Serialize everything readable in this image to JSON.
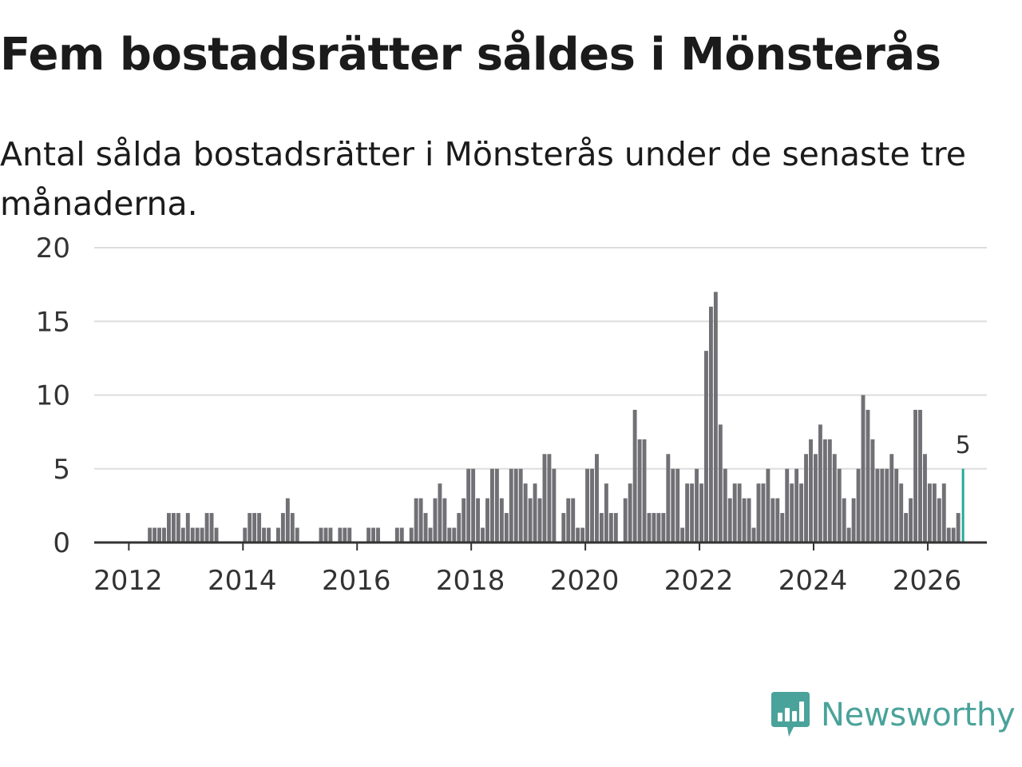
{
  "title": "Fem bostadsrätter såldes i Mönsterås",
  "subtitle": "Antal sålda bostadsrätter i Mönsterås under de senaste tre månaderna.",
  "brand": {
    "name": "Newsworthy",
    "color": "#4aa39a"
  },
  "colors": {
    "bar": "#717075",
    "highlight": "#2aa79a",
    "grid": "#dddddd",
    "axis": "#333333"
  },
  "chart_data": {
    "type": "bar",
    "title": "Fem bostadsrätter såldes i Mönsterås",
    "subtitle": "Antal sålda bostadsrätter i Mönsterås under de senaste tre månaderna.",
    "xlabel": "",
    "ylabel": "",
    "ylim": [
      0,
      20
    ],
    "yticks": [
      0,
      5,
      10,
      15,
      20
    ],
    "xticks": [
      "2012",
      "2014",
      "2016",
      "2018",
      "2020",
      "2022",
      "2024",
      "2026"
    ],
    "grid": true,
    "start": "2011-05",
    "frequency": "monthly",
    "values": [
      0,
      0,
      0,
      0,
      0,
      0,
      0,
      0,
      0,
      0,
      0,
      0,
      1,
      1,
      1,
      1,
      2,
      2,
      2,
      1,
      2,
      1,
      1,
      1,
      2,
      2,
      1,
      0,
      0,
      0,
      0,
      0,
      1,
      2,
      2,
      2,
      1,
      1,
      0,
      1,
      2,
      3,
      2,
      1,
      0,
      0,
      0,
      0,
      1,
      1,
      1,
      0,
      1,
      1,
      1,
      0,
      0,
      0,
      1,
      1,
      1,
      0,
      0,
      0,
      1,
      1,
      0,
      1,
      3,
      3,
      2,
      1,
      3,
      4,
      3,
      1,
      1,
      2,
      3,
      5,
      5,
      3,
      1,
      3,
      5,
      5,
      3,
      2,
      5,
      5,
      5,
      4,
      3,
      4,
      3,
      6,
      6,
      5,
      0,
      2,
      3,
      3,
      1,
      1,
      5,
      5,
      6,
      2,
      4,
      2,
      2,
      0,
      3,
      4,
      9,
      7,
      7,
      2,
      2,
      2,
      2,
      6,
      5,
      5,
      1,
      4,
      4,
      5,
      4,
      13,
      16,
      17,
      8,
      5,
      3,
      4,
      4,
      3,
      3,
      1,
      4,
      4,
      5,
      3,
      3,
      2,
      5,
      4,
      5,
      4,
      6,
      7,
      6,
      8,
      7,
      7,
      6,
      5,
      3,
      1,
      3,
      5,
      10,
      9,
      7,
      5,
      5,
      5,
      6,
      5,
      4,
      2,
      3,
      9,
      9,
      6,
      4,
      4,
      3,
      4,
      1,
      1,
      2,
      5
    ],
    "highlight": {
      "label": "5",
      "value": 5
    }
  }
}
